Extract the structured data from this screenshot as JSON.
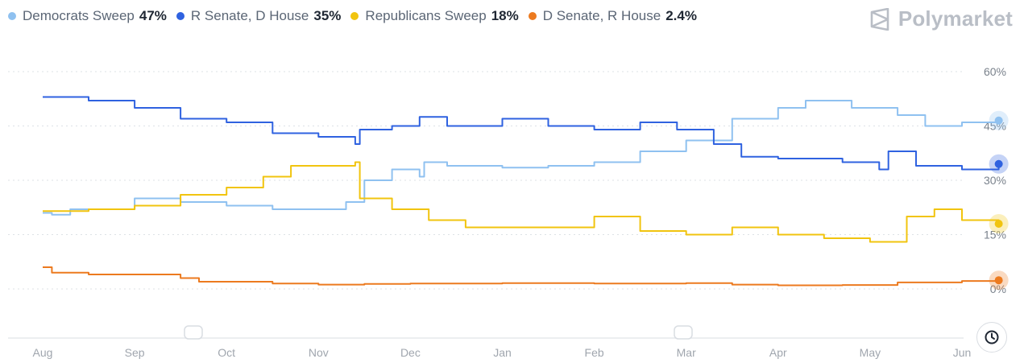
{
  "brand": {
    "name": "Polymarket",
    "icon": "polymarket-logo-icon"
  },
  "legend": [
    {
      "name": "Democrats Sweep",
      "value": "47%",
      "color": "#8fc1f0"
    },
    {
      "name": "R Senate, D House",
      "value": "35%",
      "color": "#2f62e0"
    },
    {
      "name": "Republicans Sweep",
      "value": "18%",
      "color": "#f1c40f"
    },
    {
      "name": "D Senate, R House",
      "value": "2.4%",
      "color": "#ec7a1f"
    }
  ],
  "controls": {
    "time_button_icon": "clock-icon"
  },
  "chart_data": {
    "type": "line",
    "x_ticks": [
      "Aug",
      "Sep",
      "Oct",
      "Nov",
      "Dec",
      "Jan",
      "Feb",
      "Mar",
      "Apr",
      "May",
      "Jun"
    ],
    "y_ticks": [
      "60%",
      "45%",
      "30%",
      "15%",
      "0%"
    ],
    "ylim": [
      0,
      60
    ],
    "grid": true,
    "y_axis_side": "right",
    "legend_position": "top",
    "series": [
      {
        "name": "Democrats Sweep",
        "color": "#8fc1f0",
        "points": [
          [
            0,
            21
          ],
          [
            0.1,
            20.5
          ],
          [
            0.3,
            22
          ],
          [
            0.6,
            22
          ],
          [
            1,
            25
          ],
          [
            1.5,
            24
          ],
          [
            2,
            23
          ],
          [
            2.5,
            22
          ],
          [
            3,
            22
          ],
          [
            3.3,
            24
          ],
          [
            3.5,
            30
          ],
          [
            3.8,
            33
          ],
          [
            4.1,
            31
          ],
          [
            4.15,
            35
          ],
          [
            4.4,
            34
          ],
          [
            5,
            33.5
          ],
          [
            5.5,
            34
          ],
          [
            6,
            35
          ],
          [
            6.5,
            38
          ],
          [
            7,
            41
          ],
          [
            7.5,
            47
          ],
          [
            8,
            50
          ],
          [
            8.3,
            52
          ],
          [
            8.8,
            50
          ],
          [
            9.3,
            48
          ],
          [
            9.6,
            45
          ],
          [
            10,
            46
          ],
          [
            10.4,
            46.5
          ]
        ]
      },
      {
        "name": "R Senate, D House",
        "color": "#2f62e0",
        "points": [
          [
            0,
            53
          ],
          [
            0.5,
            52
          ],
          [
            1,
            50
          ],
          [
            1.5,
            47
          ],
          [
            2,
            46
          ],
          [
            2.5,
            43
          ],
          [
            3,
            42
          ],
          [
            3.4,
            40
          ],
          [
            3.45,
            44
          ],
          [
            3.8,
            45
          ],
          [
            4.1,
            47.5
          ],
          [
            4.4,
            45
          ],
          [
            5,
            47
          ],
          [
            5.5,
            45
          ],
          [
            6,
            44
          ],
          [
            6.5,
            46
          ],
          [
            6.9,
            44
          ],
          [
            7.3,
            40
          ],
          [
            7.6,
            36.5
          ],
          [
            8,
            36
          ],
          [
            8.7,
            35
          ],
          [
            9.1,
            33
          ],
          [
            9.2,
            38
          ],
          [
            9.5,
            34
          ],
          [
            10,
            33
          ],
          [
            10.4,
            34.5
          ]
        ]
      },
      {
        "name": "Republicans Sweep",
        "color": "#f1c40f",
        "points": [
          [
            0,
            21.5
          ],
          [
            0.5,
            22
          ],
          [
            1,
            23
          ],
          [
            1.5,
            26
          ],
          [
            2,
            28
          ],
          [
            2.4,
            31
          ],
          [
            2.7,
            34
          ],
          [
            3,
            34
          ],
          [
            3.4,
            35
          ],
          [
            3.45,
            25
          ],
          [
            3.8,
            22
          ],
          [
            4.2,
            19
          ],
          [
            4.6,
            17
          ],
          [
            5,
            17
          ],
          [
            5.5,
            17
          ],
          [
            6,
            20
          ],
          [
            6.5,
            16
          ],
          [
            7,
            15
          ],
          [
            7.5,
            17
          ],
          [
            8,
            15
          ],
          [
            8.5,
            14
          ],
          [
            9,
            13
          ],
          [
            9.4,
            20
          ],
          [
            9.7,
            22
          ],
          [
            10,
            19
          ],
          [
            10.4,
            18
          ]
        ]
      },
      {
        "name": "D Senate, R House",
        "color": "#ec7a1f",
        "points": [
          [
            0,
            6
          ],
          [
            0.1,
            4.5
          ],
          [
            0.5,
            4
          ],
          [
            1,
            4
          ],
          [
            1.5,
            3
          ],
          [
            1.7,
            2
          ],
          [
            2.5,
            1.5
          ],
          [
            3,
            1.2
          ],
          [
            3.5,
            1.4
          ],
          [
            4,
            1.5
          ],
          [
            5,
            1.6
          ],
          [
            6,
            1.5
          ],
          [
            7,
            1.6
          ],
          [
            7.5,
            1.2
          ],
          [
            8,
            1
          ],
          [
            8.7,
            1.1
          ],
          [
            9.3,
            1.8
          ],
          [
            10,
            2.2
          ],
          [
            10.4,
            2.4
          ]
        ]
      }
    ]
  }
}
